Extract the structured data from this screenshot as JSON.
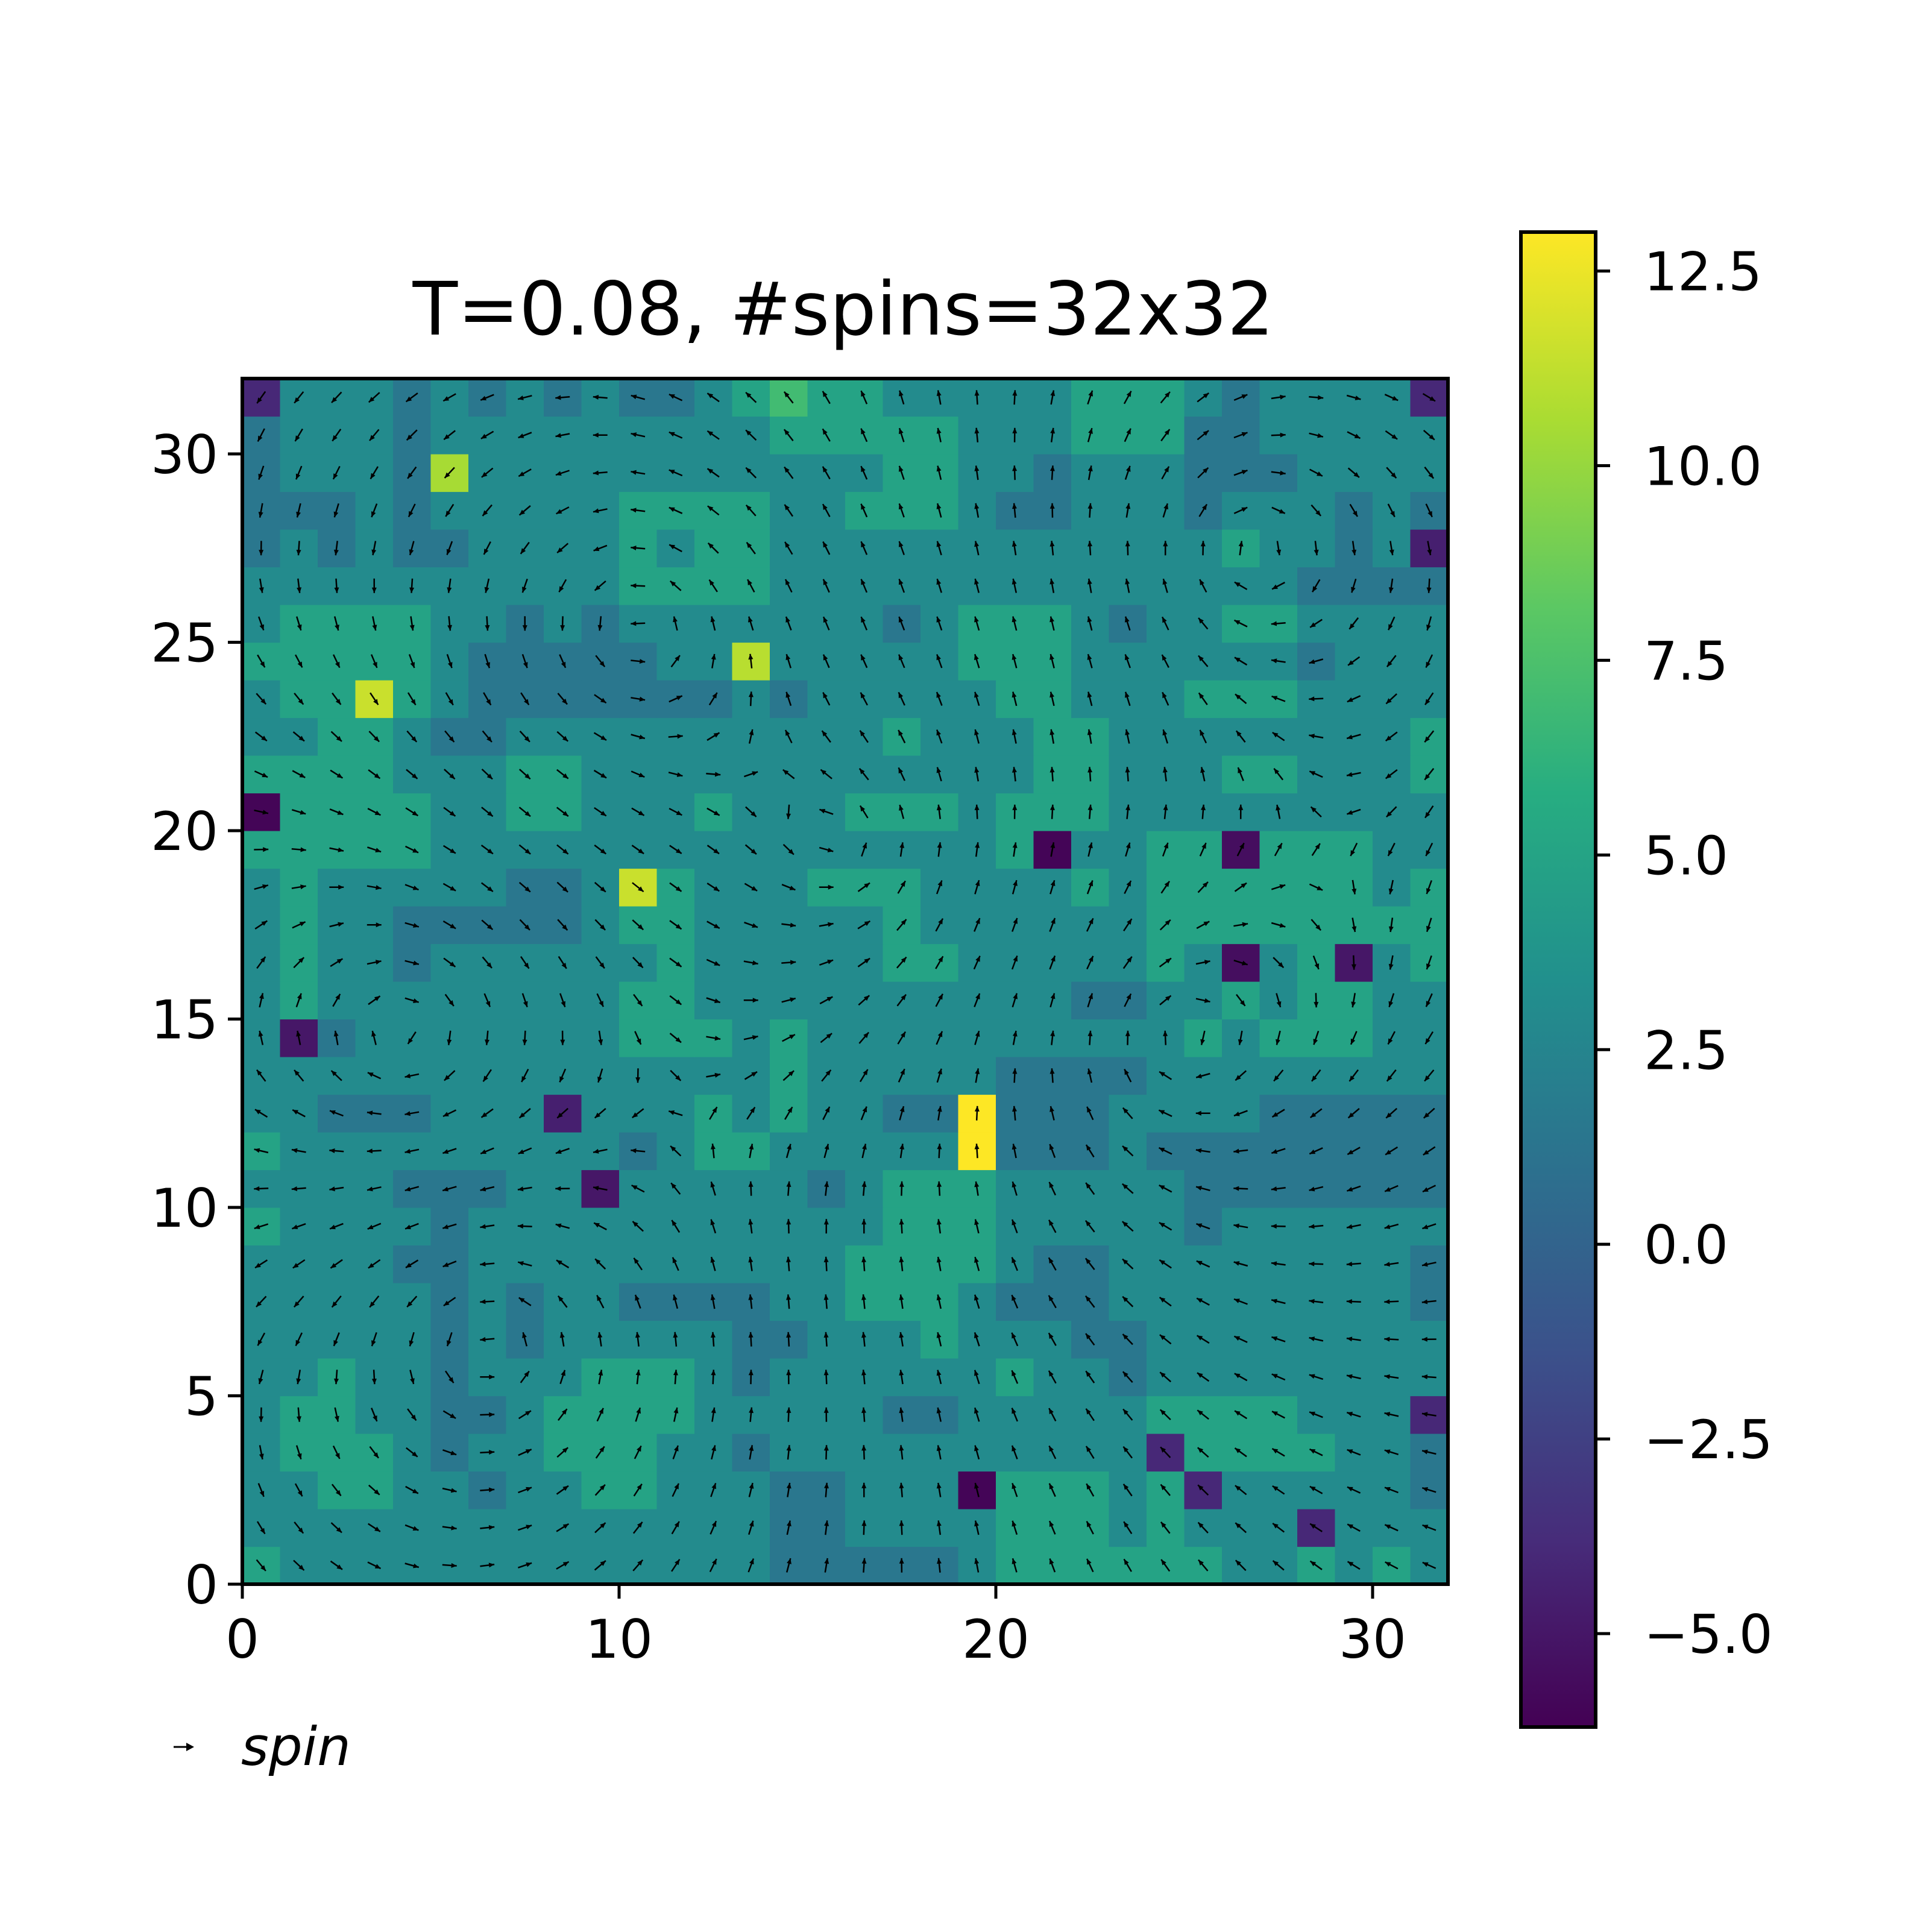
{
  "chart_data": {
    "type": "heatmap",
    "title": "T=0.08, #spins=32x32",
    "xlabel": "",
    "ylabel": "",
    "xlim": [
      0,
      32
    ],
    "ylim": [
      0,
      32
    ],
    "xticks": [
      0,
      10,
      20,
      30
    ],
    "yticks": [
      0,
      5,
      10,
      15,
      20,
      25,
      30
    ],
    "xtick_labels": [
      "0",
      "10",
      "20",
      "30"
    ],
    "ytick_labels": [
      "0",
      "5",
      "10",
      "15",
      "20",
      "25",
      "30"
    ],
    "colormap": "viridis",
    "colorbar": {
      "range": [
        -6.2,
        13.0
      ],
      "ticks": [
        -5.0,
        -2.5,
        0.0,
        2.5,
        5.0,
        7.5,
        10.0,
        12.5
      ],
      "tick_labels": [
        "−5.0",
        "−2.5",
        "0.0",
        "2.5",
        "5.0",
        "7.5",
        "10.0",
        "12.5"
      ]
    },
    "grid": false,
    "legend": {
      "label": "spin",
      "placement": "bottom-left",
      "marker": "quiver-arrow"
    },
    "quiver": {
      "color": "#000000",
      "grid": "32x32",
      "description": "one unit spin arrow per lattice site"
    },
    "highlighted_cells": [
      {
        "x": 19,
        "y": 11,
        "value": 13.0
      },
      {
        "x": 19,
        "y": 12,
        "value": 13.0
      },
      {
        "x": 3,
        "y": 23,
        "value": 11.5
      },
      {
        "x": 13,
        "y": 24,
        "value": 11.0
      },
      {
        "x": 10,
        "y": 18,
        "value": 11.5
      },
      {
        "x": 5,
        "y": 29,
        "value": 10.5
      },
      {
        "x": 0,
        "y": 20,
        "value": -6.0
      },
      {
        "x": 21,
        "y": 19,
        "value": -6.0
      },
      {
        "x": 26,
        "y": 19,
        "value": -5.5
      },
      {
        "x": 26,
        "y": 16,
        "value": -5.5
      },
      {
        "x": 29,
        "y": 16,
        "value": -5.0
      },
      {
        "x": 19,
        "y": 2,
        "value": -6.0
      },
      {
        "x": 1,
        "y": 14,
        "value": -5.0
      },
      {
        "x": 9,
        "y": 10,
        "value": -5.0
      },
      {
        "x": 8,
        "y": 12,
        "value": -4.5
      },
      {
        "x": 31,
        "y": 27,
        "value": -4.5
      },
      {
        "x": 0,
        "y": 31,
        "value": -4.0
      },
      {
        "x": 31,
        "y": 31,
        "value": -4.0
      },
      {
        "x": 24,
        "y": 3,
        "value": -4.0
      },
      {
        "x": 25,
        "y": 2,
        "value": -4.0
      },
      {
        "x": 28,
        "y": 1,
        "value": -4.0
      },
      {
        "x": 31,
        "y": 4,
        "value": -4.0
      }
    ]
  }
}
